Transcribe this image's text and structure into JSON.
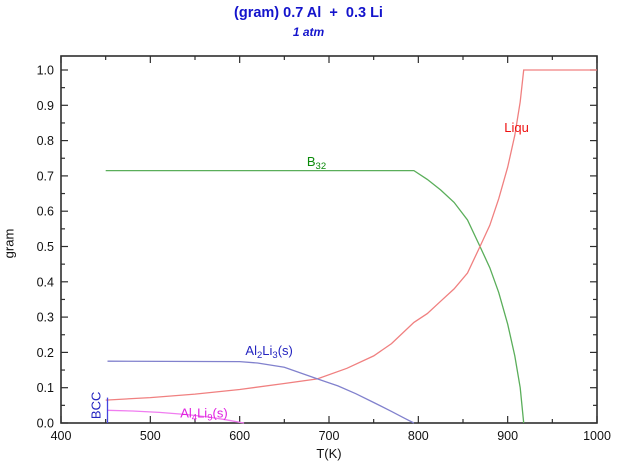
{
  "chart_data": {
    "type": "line",
    "title": "(gram) 0.7 Al  +  0.3 Li",
    "subtitle": "1 atm",
    "xlabel": "T(K)",
    "ylabel": "gram",
    "xlim": [
      400,
      1000
    ],
    "ylim": [
      0,
      1.0
    ],
    "grid": false,
    "legend_position": "inline-labels",
    "x_ticks": [
      {
        "v": 400,
        "label": "400"
      },
      {
        "v": 500,
        "label": "500"
      },
      {
        "v": 600,
        "label": "600"
      },
      {
        "v": 700,
        "label": "700"
      },
      {
        "v": 800,
        "label": "800"
      },
      {
        "v": 900,
        "label": "900"
      },
      {
        "v": 1000,
        "label": "1000"
      }
    ],
    "x_minor_step": 50,
    "y_ticks": [
      {
        "v": 0.0,
        "label": "0.0"
      },
      {
        "v": 0.1,
        "label": "0.1"
      },
      {
        "v": 0.2,
        "label": "0.2"
      },
      {
        "v": 0.3,
        "label": "0.3"
      },
      {
        "v": 0.4,
        "label": "0.4"
      },
      {
        "v": 0.5,
        "label": "0.5"
      },
      {
        "v": 0.6,
        "label": "0.6"
      },
      {
        "v": 0.7,
        "label": "0.7"
      },
      {
        "v": 0.8,
        "label": "0.8"
      },
      {
        "v": 0.9,
        "label": "0.9"
      },
      {
        "v": 1.0,
        "label": "1.0"
      }
    ],
    "y_minor_step": 0.05,
    "series": [
      {
        "id": "b32",
        "name": "B32",
        "color": "#5aae5a",
        "label": {
          "parts": [
            {
              "t": "B"
            },
            {
              "t": "32",
              "sub": true
            }
          ],
          "color": "#0b8a0b",
          "T": 686,
          "gram": 0.728,
          "rotate": 0
        },
        "points": [
          [
            450,
            0.715
          ],
          [
            795,
            0.715
          ],
          [
            810,
            0.69
          ],
          [
            825,
            0.66
          ],
          [
            840,
            0.625
          ],
          [
            855,
            0.575
          ],
          [
            869,
            0.5
          ],
          [
            880,
            0.44
          ],
          [
            890,
            0.37
          ],
          [
            900,
            0.28
          ],
          [
            908,
            0.19
          ],
          [
            914,
            0.1
          ],
          [
            918,
            0.0
          ]
        ]
      },
      {
        "id": "liquid",
        "name": "Liqu",
        "color": "#f08080",
        "label": {
          "parts": [
            {
              "t": "Liqu"
            }
          ],
          "color": "#ee1111",
          "T": 910,
          "gram": 0.825,
          "rotate": 0
        },
        "points": [
          [
            450,
            0.065
          ],
          [
            500,
            0.072
          ],
          [
            550,
            0.082
          ],
          [
            600,
            0.095
          ],
          [
            650,
            0.112
          ],
          [
            687,
            0.125
          ],
          [
            720,
            0.155
          ],
          [
            750,
            0.19
          ],
          [
            770,
            0.225
          ],
          [
            795,
            0.285
          ],
          [
            810,
            0.31
          ],
          [
            825,
            0.345
          ],
          [
            840,
            0.38
          ],
          [
            855,
            0.425
          ],
          [
            869,
            0.5
          ],
          [
            880,
            0.56
          ],
          [
            890,
            0.635
          ],
          [
            900,
            0.725
          ],
          [
            908,
            0.815
          ],
          [
            914,
            0.91
          ],
          [
            918,
            1.0
          ],
          [
            1000,
            1.0
          ]
        ]
      },
      {
        "id": "al2li3",
        "name": "Al2Li3(s)",
        "color": "#8181cd",
        "label": {
          "parts": [
            {
              "t": "Al"
            },
            {
              "t": "2",
              "sub": true
            },
            {
              "t": "Li"
            },
            {
              "t": "3",
              "sub": true
            },
            {
              "t": "(s)"
            }
          ],
          "color": "#2424c0",
          "T": 633,
          "gram": 0.192,
          "rotate": 0
        },
        "points": [
          [
            452,
            0.175
          ],
          [
            600,
            0.174
          ],
          [
            620,
            0.17
          ],
          [
            650,
            0.158
          ],
          [
            687,
            0.125
          ],
          [
            710,
            0.105
          ],
          [
            730,
            0.083
          ],
          [
            750,
            0.058
          ],
          [
            770,
            0.033
          ],
          [
            785,
            0.013
          ],
          [
            795,
            0.0
          ]
        ]
      },
      {
        "id": "al4li9",
        "name": "Al4Li9(s)",
        "color": "#f07df0",
        "label": {
          "parts": [
            {
              "t": "Al"
            },
            {
              "t": "4",
              "sub": true
            },
            {
              "t": "Li"
            },
            {
              "t": "9",
              "sub": true
            },
            {
              "t": "(s)"
            }
          ],
          "color": "#e022e0",
          "T": 560,
          "gram": 0.016,
          "rotate": 0
        },
        "points": [
          [
            452,
            0.036
          ],
          [
            480,
            0.034
          ],
          [
            510,
            0.03
          ],
          [
            540,
            0.024
          ],
          [
            565,
            0.017
          ],
          [
            585,
            0.009
          ],
          [
            600,
            0.002
          ],
          [
            605,
            0.0
          ]
        ]
      },
      {
        "id": "bcc",
        "name": "BCC",
        "color": "#4545e0",
        "label": {
          "parts": [
            {
              "t": "BCC"
            }
          ],
          "color": "#2424c0",
          "T": 444,
          "gram": 0.05,
          "rotate": -90
        },
        "points": [
          [
            452,
            0.0
          ],
          [
            452,
            0.072
          ]
        ]
      }
    ]
  },
  "colors": {
    "frame": "#2e2e2e",
    "tick_text": "#111111",
    "title_blue": "#1414cc",
    "background": "#ffffff"
  }
}
